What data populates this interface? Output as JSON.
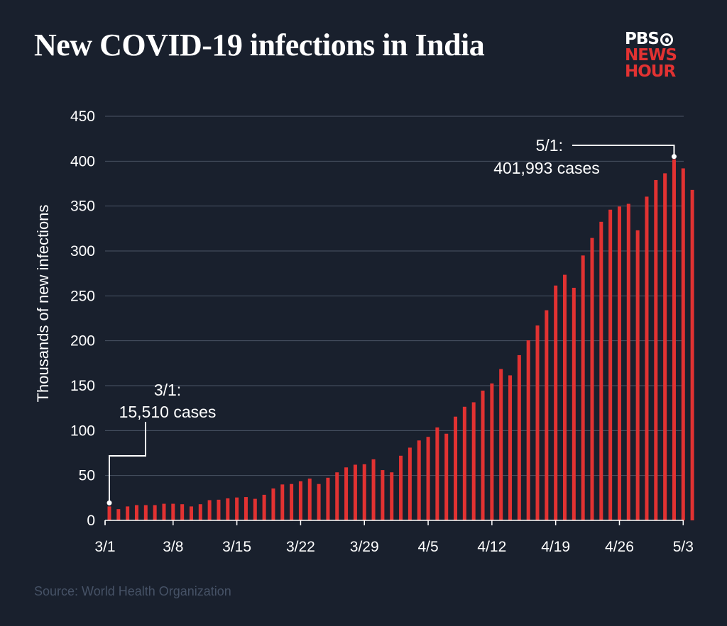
{
  "header": {
    "title": "New COVID-19 infections in India"
  },
  "logo": {
    "line1": "PBS",
    "line2": "NEWS",
    "line3": "HOUR"
  },
  "footer": {
    "source": "Source: World Health Organization"
  },
  "colors": {
    "background": "#19202d",
    "bar": "#e23232",
    "grid": "#4a5465",
    "text": "#ffffff",
    "source": "#465266"
  },
  "chart_data": {
    "type": "bar",
    "title": "New COVID-19 infections in India",
    "xlabel": "",
    "ylabel": "Thousands of new infections",
    "ylim": [
      0,
      450
    ],
    "yticks": [
      0,
      50,
      100,
      150,
      200,
      250,
      300,
      350,
      400,
      450
    ],
    "xtick_labels": [
      "3/1",
      "3/8",
      "3/15",
      "3/22",
      "3/29",
      "4/5",
      "4/12",
      "4/19",
      "4/26",
      "5/3"
    ],
    "xtick_day_index": [
      0,
      7,
      14,
      21,
      28,
      35,
      42,
      49,
      56,
      63
    ],
    "series": [
      {
        "name": "New infections (thousands)",
        "values": [
          15.5,
          12.5,
          15.5,
          17,
          17,
          17,
          18.5,
          18.5,
          18,
          15.5,
          18,
          22.5,
          23,
          24.5,
          25.5,
          26,
          24,
          28.5,
          35.5,
          40,
          40.5,
          43.5,
          46.5,
          40.5,
          47.5,
          53.5,
          59,
          62,
          62.5,
          68,
          56,
          53.5,
          72,
          81,
          89,
          93,
          103.5,
          96.5,
          115.5,
          126.5,
          131.5,
          144.5,
          152.5,
          168.5,
          161.5,
          184,
          200.5,
          217,
          234,
          261.5,
          273.5,
          259,
          295,
          314.5,
          332.5,
          346,
          349.5,
          352.5,
          323,
          360.5,
          379,
          386.5,
          402,
          392,
          368
        ]
      }
    ],
    "annotations": [
      {
        "day_index": 0,
        "label_line1": "3/1:",
        "label_line2": "15,510 cases"
      },
      {
        "day_index": 62,
        "label_line1": "5/1:",
        "label_line2": "401,993 cases"
      }
    ]
  }
}
